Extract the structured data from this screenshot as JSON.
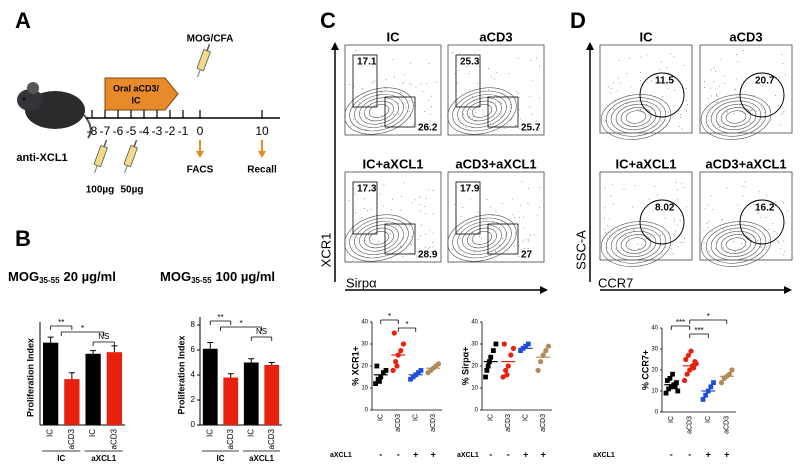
{
  "panel_a": {
    "label": "A",
    "treatment": [
      "Oral aCD3/",
      "IC"
    ],
    "immunization": "MOG/CFA",
    "antibody": "anti-XCL1",
    "timeline": [
      "-8",
      "-7",
      "-6",
      "-5",
      "-4",
      "-3",
      "-2",
      "-1",
      "0",
      "10"
    ],
    "doses": [
      "100µg",
      "50µg"
    ],
    "readouts": [
      "FACS",
      "Recall"
    ]
  },
  "panel_b": {
    "label": "B",
    "charts": [
      {
        "type": "bar",
        "title": {
          "main": "MOG",
          "sub": "35-55",
          "rest": "20 µg/ml"
        },
        "ylabel": "Proliferation Index",
        "categories": [
          "IC",
          "aCD3",
          "IC",
          "aCD3"
        ],
        "groups": [
          "IC",
          "aXCL1"
        ],
        "colors": [
          "#000000",
          "#e8210f",
          "#000000",
          "#e8210f"
        ],
        "values": [
          5.2,
          2.9,
          4.5,
          4.6
        ],
        "errors": [
          0.35,
          0.4,
          0.2,
          0.4
        ],
        "ylim": [
          0,
          6
        ],
        "significance": [
          "**",
          "*",
          "NS"
        ]
      },
      {
        "type": "bar",
        "title": {
          "main": "MOG",
          "sub": "35-55",
          "rest": "100 µg/ml"
        },
        "ylabel": "Proliferation Index",
        "categories": [
          "IC",
          "aCD3",
          "IC",
          "aCD3"
        ],
        "groups": [
          "IC",
          "aXCL1"
        ],
        "colors": [
          "#000000",
          "#e8210f",
          "#000000",
          "#e8210f"
        ],
        "values": [
          6.1,
          3.8,
          5.0,
          4.8
        ],
        "errors": [
          0.5,
          0.3,
          0.3,
          0.2
        ],
        "ylim": [
          0,
          8
        ],
        "yticks": [
          0,
          2,
          4,
          6,
          8
        ],
        "significance": [
          "**",
          "*",
          "NS"
        ]
      }
    ]
  },
  "panel_c": {
    "label": "C",
    "ylabel": "XCR1",
    "xlabel": "Sirpα",
    "plots": [
      {
        "title": "IC",
        "values": [
          17.1,
          26.2
        ]
      },
      {
        "title": "aCD3",
        "values": [
          25.3,
          25.7
        ]
      },
      {
        "title": "IC+aXCL1",
        "values": [
          17.3,
          28.9
        ]
      },
      {
        "title": "aCD3+aXCL1",
        "values": [
          17.9,
          27.0
        ]
      }
    ],
    "dot_charts": [
      {
        "type": "dot",
        "ylabel": "% XCR1+",
        "ylim": [
          0,
          40
        ],
        "yticks": [
          0,
          10,
          20,
          30,
          40
        ],
        "categories": [
          "IC",
          "aCD3",
          "IC",
          "aCD3"
        ],
        "row_label": "aXCL1",
        "row_values": [
          "-",
          "-",
          "+",
          "+"
        ],
        "groups": [
          {
            "color": "#000000",
            "shape": "square",
            "points": [
              12,
              14,
              15,
              17,
              18,
              20,
              13
            ],
            "mean": 16
          },
          {
            "color": "#e8210f",
            "shape": "circle",
            "points": [
              18,
              22,
              25,
              27,
              30,
              35,
              20
            ],
            "mean": 25
          },
          {
            "color": "#1f4fd8",
            "shape": "square",
            "points": [
              14,
              15,
              16,
              17,
              18
            ],
            "mean": 16
          },
          {
            "color": "#b08a5a",
            "shape": "circle",
            "points": [
              17,
              18,
              19,
              20,
              21
            ],
            "mean": 19
          }
        ],
        "significance": [
          "*",
          "*"
        ]
      },
      {
        "type": "dot",
        "ylabel": "% Sirpα+",
        "ylim": [
          0,
          40
        ],
        "yticks": [
          0,
          10,
          20,
          30,
          40
        ],
        "categories": [
          "IC",
          "aCD3",
          "IC",
          "aCD3"
        ],
        "row_label": "aXCL1",
        "row_values": [
          "-",
          "-",
          "+",
          "+"
        ],
        "groups": [
          {
            "color": "#000000",
            "shape": "square",
            "points": [
              15,
              20,
              24,
              27,
              30,
              18,
              22
            ],
            "mean": 22
          },
          {
            "color": "#e8210f",
            "shape": "circle",
            "points": [
              15,
              18,
              20,
              25,
              28,
              30,
              16
            ],
            "mean": 22
          },
          {
            "color": "#1f4fd8",
            "shape": "square",
            "points": [
              27,
              28,
              29,
              30
            ],
            "mean": 28
          },
          {
            "color": "#b08a5a",
            "shape": "circle",
            "points": [
              18,
              22,
              25,
              27,
              29
            ],
            "mean": 24
          }
        ],
        "significance": []
      }
    ]
  },
  "panel_d": {
    "label": "D",
    "ylabel": "SSC-A",
    "xlabel": "CCR7",
    "plots": [
      {
        "title": "IC",
        "values": [
          11.5
        ]
      },
      {
        "title": "aCD3",
        "values": [
          20.7
        ]
      },
      {
        "title": "IC+aXCL1",
        "values": [
          8.02
        ]
      },
      {
        "title": "aCD3+aXCL1",
        "values": [
          16.2
        ]
      }
    ],
    "dot_charts": [
      {
        "type": "dot",
        "ylabel": "% CCR7+",
        "ylim": [
          0,
          40
        ],
        "yticks": [
          0,
          10,
          20,
          30,
          40
        ],
        "categories": [
          "IC",
          "aCD3",
          "IC",
          "aCD3"
        ],
        "row_label": "aXCL1",
        "row_values": [
          "-",
          "-",
          "+",
          "+"
        ],
        "groups": [
          {
            "color": "#000000",
            "shape": "square",
            "points": [
              9,
              11,
              12,
              13,
              14,
              15,
              16,
              18,
              12,
              10
            ],
            "mean": 13
          },
          {
            "color": "#e8210f",
            "shape": "circle",
            "points": [
              15,
              18,
              20,
              22,
              24,
              25,
              27,
              29,
              21,
              23
            ],
            "mean": 22
          },
          {
            "color": "#1f4fd8",
            "shape": "square",
            "points": [
              6,
              8,
              10,
              12,
              14
            ],
            "mean": 10
          },
          {
            "color": "#b08a5a",
            "shape": "circle",
            "points": [
              14,
              16,
              17,
              18,
              20
            ],
            "mean": 17
          }
        ],
        "significance": [
          "***",
          "***",
          "*"
        ]
      }
    ]
  }
}
